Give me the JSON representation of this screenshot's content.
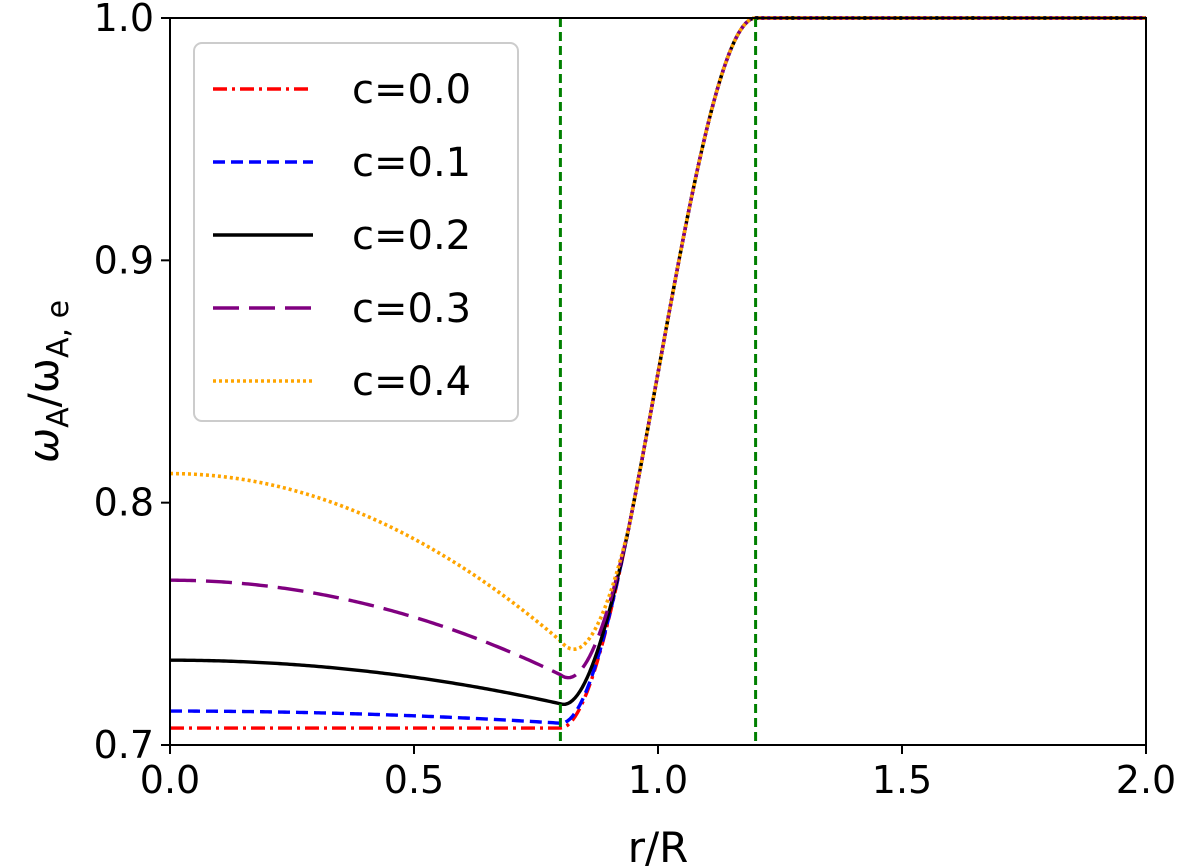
{
  "chart_data": {
    "type": "line",
    "title": "",
    "xlabel": "r/R",
    "ylabel": {
      "main": "ω",
      "sub1": "A",
      "slash": "/ω",
      "sub2": "A, e"
    },
    "xlim": [
      0.0,
      2.0
    ],
    "ylim": [
      0.7,
      1.0
    ],
    "x_ticks": [
      0.0,
      0.5,
      1.0,
      1.5,
      2.0
    ],
    "x_tick_labels": [
      "0.0",
      "0.5",
      "1.0",
      "1.5",
      "2.0"
    ],
    "y_ticks": [
      0.7,
      0.8,
      0.9,
      1.0
    ],
    "y_tick_labels": [
      "0.7",
      "0.8",
      "0.9",
      "1.0"
    ],
    "grid": false,
    "legend_position": "upper-left",
    "vertical_lines": [
      {
        "x": 0.8,
        "color": "#008000",
        "style": "dashed"
      },
      {
        "x": 1.2,
        "color": "#008000",
        "style": "dashed"
      }
    ],
    "series": [
      {
        "name": "c=0.0",
        "color": "#ff0000",
        "style": "dashdot",
        "interior": 0.707,
        "min_value": 0.707
      },
      {
        "name": "c=0.1",
        "color": "#0000ff",
        "style": "dashed",
        "interior": 0.714,
        "min_value": 0.709
      },
      {
        "name": "c=0.2",
        "color": "#000000",
        "style": "solid",
        "interior": 0.735,
        "min_value": 0.717
      },
      {
        "name": "c=0.3",
        "color": "#800080",
        "style": "longdash",
        "interior": 0.768,
        "min_value": 0.729
      },
      {
        "name": "c=0.4",
        "color": "#ffa500",
        "style": "dotted",
        "interior": 0.812,
        "min_value": 0.743
      }
    ],
    "transition": {
      "x_start": 0.8,
      "x_end": 1.2,
      "exterior_value": 1.0
    }
  }
}
